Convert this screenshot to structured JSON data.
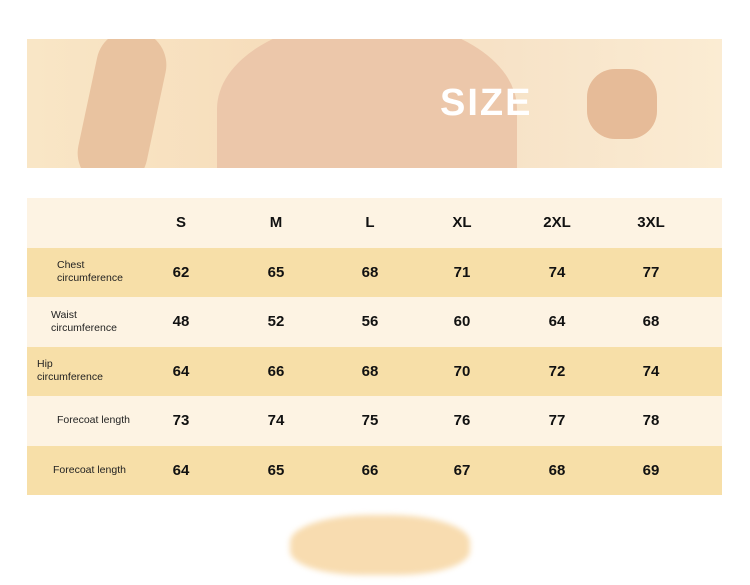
{
  "banner": {
    "title": "SIZE"
  },
  "table": {
    "sizes": [
      "S",
      "M",
      "L",
      "XL",
      "2XL",
      "3XL"
    ],
    "rows": [
      {
        "label": "Chest circumference",
        "values": [
          "62",
          "65",
          "68",
          "71",
          "74",
          "77"
        ]
      },
      {
        "label": "Waist circumference",
        "values": [
          "48",
          "52",
          "56",
          "60",
          "64",
          "68"
        ]
      },
      {
        "label": "Hip circumference",
        "values": [
          "64",
          "66",
          "68",
          "70",
          "72",
          "74"
        ]
      },
      {
        "label": "Forecoat length",
        "values": [
          "73",
          "74",
          "75",
          "76",
          "77",
          "78"
        ]
      },
      {
        "label": "Forecoat length",
        "values": [
          "64",
          "65",
          "66",
          "67",
          "68",
          "69"
        ]
      }
    ]
  },
  "colors": {
    "banner": "#f9e6c6",
    "row_light": "#fdf3e3",
    "row_dark": "#f7dfa8"
  }
}
